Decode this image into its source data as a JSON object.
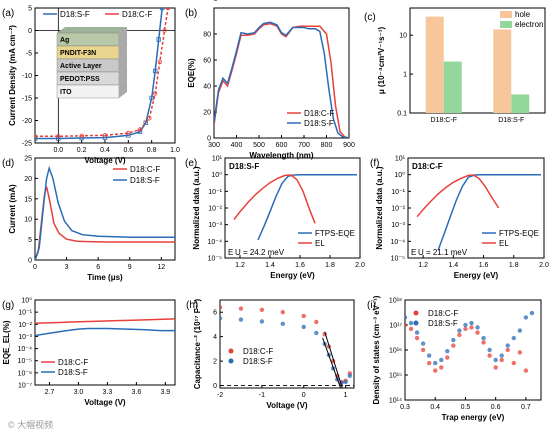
{
  "colors": {
    "red": "#e8403a",
    "blue": "#2a6cb8",
    "hole": "#f7c79b",
    "electron": "#94d79b"
  },
  "watermark": "© 大帽视频",
  "chart_data": [
    {
      "id": "a",
      "type": "line",
      "panel_label": "(a)",
      "xlabel": "Voltage (V)",
      "ylabel": "Current Density (mA cm⁻²)",
      "xlim": [
        -0.2,
        1.0
      ],
      "ylim": [
        -25,
        5
      ],
      "xticks": [
        "0.0",
        "0.2",
        "0.4",
        "0.6",
        "0.8",
        "1.0"
      ],
      "yticks": [
        "-25",
        "-20",
        "-15",
        "-10",
        "-5",
        "0",
        "5"
      ],
      "legend": "top",
      "inset_layers": [
        "Ag",
        "PNDIT-F3N",
        "Active Layer",
        "PEDOT:PSS",
        "ITO"
      ],
      "series": [
        {
          "name": "D18:S-F",
          "color": "blue",
          "marker": "square",
          "dash": false,
          "x": [
            -0.2,
            0,
            0.2,
            0.4,
            0.6,
            0.7,
            0.75,
            0.8,
            0.83,
            0.86,
            0.89
          ],
          "y": [
            -24,
            -24,
            -23.9,
            -23.8,
            -23.3,
            -22.5,
            -20.5,
            -15,
            -9,
            -2,
            5
          ]
        },
        {
          "name": "D18:C-F",
          "color": "red",
          "marker": "circle",
          "dash": true,
          "x": [
            -0.2,
            0,
            0.2,
            0.4,
            0.6,
            0.7,
            0.78,
            0.83,
            0.87,
            0.91,
            0.94
          ],
          "y": [
            -23.5,
            -23.5,
            -23.4,
            -23.3,
            -22.8,
            -22,
            -19.5,
            -14,
            -7,
            0,
            5
          ]
        }
      ]
    },
    {
      "id": "b",
      "type": "line",
      "panel_label": "(b)",
      "xlabel": "Wavelength (nm)",
      "ylabel": "EQE(%)",
      "xlim": [
        300,
        900
      ],
      "ylim": [
        0,
        100
      ],
      "xticks": [
        "300",
        "400",
        "500",
        "600",
        "700",
        "800",
        "900"
      ],
      "yticks": [
        "0",
        "20",
        "40",
        "60",
        "80",
        "100"
      ],
      "legend": "bottom-right",
      "series": [
        {
          "name": "D18:C-F",
          "color": "red",
          "x": [
            300,
            320,
            340,
            360,
            380,
            400,
            420,
            450,
            480,
            500,
            520,
            550,
            580,
            600,
            620,
            650,
            680,
            700,
            720,
            750,
            770,
            800,
            820,
            840,
            860,
            880,
            900
          ],
          "y": [
            10,
            35,
            44,
            40,
            52,
            65,
            79,
            79,
            80,
            84,
            87,
            88,
            86,
            80,
            78,
            85,
            86,
            86,
            86,
            86,
            86,
            80,
            58,
            25,
            5,
            1,
            0
          ]
        },
        {
          "name": "D18:S-F",
          "color": "blue",
          "x": [
            300,
            320,
            340,
            360,
            380,
            400,
            420,
            450,
            480,
            500,
            520,
            550,
            580,
            600,
            620,
            650,
            680,
            700,
            720,
            750,
            770,
            790,
            810,
            830,
            850,
            870,
            900
          ],
          "y": [
            12,
            37,
            46,
            42,
            54,
            67,
            81,
            80,
            81,
            85,
            88,
            89,
            87,
            81,
            79,
            85,
            85,
            85,
            84,
            84,
            82,
            65,
            38,
            15,
            4,
            1,
            0
          ]
        }
      ]
    },
    {
      "id": "c",
      "type": "bar",
      "panel_label": "(c)",
      "ylabel": "μ (10⁻⁴cm²V⁻¹s⁻¹)",
      "yscale": "log",
      "ylim": [
        0.1,
        50
      ],
      "yticks": [
        "0.1",
        "1",
        "10"
      ],
      "categories": [
        "D18:C-F",
        "D18:S-F"
      ],
      "legend": "top-right",
      "series": [
        {
          "name": "hole",
          "color": "hole",
          "values": [
            30,
            14
          ]
        },
        {
          "name": "electron",
          "color": "electron",
          "values": [
            2.1,
            0.3
          ]
        }
      ]
    },
    {
      "id": "d",
      "type": "line",
      "panel_label": "(d)",
      "xlabel": "Time (μs)",
      "ylabel": "Current (mA)",
      "xlim": [
        0,
        13.3
      ],
      "ylim": [
        0,
        25
      ],
      "xticks": [
        "0",
        "3",
        "6",
        "9",
        "12"
      ],
      "yticks": [
        "0",
        "5",
        "10",
        "15",
        "20",
        "25"
      ],
      "legend": "top-right",
      "series": [
        {
          "name": "D18:C-F",
          "color": "red",
          "x": [
            0,
            0.3,
            0.6,
            0.9,
            1.1,
            1.4,
            1.8,
            2.3,
            3,
            4,
            5,
            7,
            10,
            13.3
          ],
          "y": [
            0,
            2,
            9,
            16,
            18,
            14.5,
            9,
            6.5,
            5.1,
            4.6,
            4.5,
            4.4,
            4.4,
            4.4
          ]
        },
        {
          "name": "D18:S-F",
          "color": "blue",
          "x": [
            0,
            0.4,
            0.8,
            1.1,
            1.35,
            1.7,
            2.2,
            2.8,
            3.5,
            4.5,
            6,
            9,
            13.3
          ],
          "y": [
            0,
            3,
            13,
            20,
            22.5,
            20,
            14,
            9.5,
            7.2,
            6.2,
            5.8,
            5.6,
            5.6
          ]
        }
      ]
    },
    {
      "id": "e",
      "type": "line",
      "panel_label": "(e)",
      "title": "D18:S-F",
      "xlabel": "Energy (eV)",
      "ylabel": "Normalized data (a.u.)",
      "yscale": "log",
      "xlim": [
        1.1,
        2.0
      ],
      "ylim": [
        1e-05,
        10
      ],
      "xticks": [
        "1.2",
        "1.4",
        "1.6",
        "1.8",
        "2.0"
      ],
      "yticks": [
        "10⁻⁵",
        "10⁻⁴",
        "10⁻³",
        "10⁻²",
        "10⁻¹",
        "10⁰",
        "10¹"
      ],
      "annotation": "E U = 24.2 meV",
      "legend": "bottom-right",
      "series": [
        {
          "name": "FTPS-EQE",
          "color": "blue",
          "x": [
            1.32,
            1.36,
            1.4,
            1.44,
            1.48,
            1.52,
            1.56,
            1.6,
            1.7,
            1.8,
            1.9,
            1.98
          ],
          "y": [
            0.00012,
            0.0008,
            0.006,
            0.05,
            0.3,
            0.8,
            0.95,
            1,
            1,
            1,
            1,
            1
          ]
        },
        {
          "name": "EL",
          "color": "red",
          "x": [
            1.16,
            1.2,
            1.25,
            1.3,
            1.35,
            1.4,
            1.45,
            1.5,
            1.54,
            1.58,
            1.62,
            1.66,
            1.7
          ],
          "y": [
            0.002,
            0.006,
            0.02,
            0.06,
            0.15,
            0.33,
            0.6,
            0.9,
            0.95,
            0.5,
            0.1,
            0.01,
            0.0012
          ]
        }
      ]
    },
    {
      "id": "f",
      "type": "line",
      "panel_label": "(f)",
      "title": "D18:C-F",
      "xlabel": "Energy (eV)",
      "ylabel": "Normalized data (a.u.)",
      "yscale": "log",
      "xlim": [
        1.1,
        2.0
      ],
      "ylim": [
        1e-05,
        10
      ],
      "xticks": [
        "1.2",
        "1.4",
        "1.6",
        "1.8",
        "2.0"
      ],
      "yticks": [
        "10⁻⁵",
        "10⁻⁴",
        "10⁻³",
        "10⁻²",
        "10⁻¹",
        "10⁰",
        "10¹"
      ],
      "annotation": "E U = 21.1 meV",
      "legend": "bottom-right",
      "series": [
        {
          "name": "FTPS-EQE",
          "color": "blue",
          "x": [
            1.3,
            1.34,
            1.38,
            1.42,
            1.46,
            1.5,
            1.54,
            1.58,
            1.65,
            1.8,
            1.9,
            1.98
          ],
          "y": [
            3e-05,
            0.0003,
            0.003,
            0.03,
            0.2,
            0.7,
            0.95,
            1,
            1,
            1,
            1,
            1
          ]
        },
        {
          "name": "EL",
          "color": "red",
          "x": [
            1.16,
            1.2,
            1.25,
            1.3,
            1.35,
            1.4,
            1.45,
            1.5,
            1.53,
            1.57,
            1.61,
            1.65,
            1.7
          ],
          "y": [
            0.003,
            0.008,
            0.025,
            0.07,
            0.17,
            0.35,
            0.6,
            0.9,
            0.95,
            0.6,
            0.2,
            0.05,
            0.01
          ]
        }
      ]
    },
    {
      "id": "g",
      "type": "line",
      "panel_label": "(g)",
      "xlabel": "Voltage (V)",
      "ylabel": "EQE_EL(%)",
      "yscale": "log",
      "xlim": [
        2.55,
        4.0
      ],
      "ylim": [
        1e-07,
        1
      ],
      "xticks": [
        "2.7",
        "3.0",
        "3.3",
        "3.6",
        "3.9"
      ],
      "yticks": [
        "10⁻⁷",
        "10⁻⁶",
        "10⁻⁵",
        "10⁻⁴",
        "10⁻³",
        "10⁻²",
        "10⁻¹",
        "10⁰"
      ],
      "legend": "bottom-left",
      "series": [
        {
          "name": "D18:C-F",
          "color": "red",
          "x": [
            2.55,
            2.8,
            3.0,
            3.2,
            3.4,
            3.6,
            3.8,
            4.0
          ],
          "y": [
            0.012,
            0.014,
            0.016,
            0.018,
            0.02,
            0.022,
            0.025,
            0.028
          ]
        },
        {
          "name": "D18:S-F",
          "color": "blue",
          "x": [
            2.55,
            2.7,
            2.85,
            3.0,
            3.1,
            3.3,
            3.5,
            3.7,
            3.85,
            4.0
          ],
          "y": [
            0.0012,
            0.0018,
            0.0028,
            0.004,
            0.0045,
            0.0045,
            0.004,
            0.0035,
            0.003,
            0.003
          ]
        }
      ]
    },
    {
      "id": "h",
      "type": "scatter",
      "panel_label": "(h)",
      "xlabel": "Voltage (V)",
      "ylabel": "Capacitance⁻² (10¹⁷ F⁻²)",
      "xlim": [
        -2,
        1.2
      ],
      "ylim": [
        -0.2,
        7
      ],
      "xticks": [
        "-2",
        "-1",
        "0",
        "1"
      ],
      "yticks": [
        "0",
        "2",
        "4",
        "6"
      ],
      "legend": "center-left",
      "series": [
        {
          "name": "D18:C-F",
          "color": "red",
          "x": [
            -2,
            -1.5,
            -1,
            -0.5,
            0,
            0.3,
            0.5,
            0.6,
            0.7,
            0.8,
            0.9,
            1.0,
            1.1
          ],
          "y": [
            6.4,
            6.3,
            6.2,
            6.0,
            5.7,
            5.2,
            4.2,
            3.2,
            2.0,
            0.8,
            0.3,
            0.4,
            1.0
          ]
        },
        {
          "name": "D18:S-F",
          "color": "blue",
          "x": [
            -2,
            -1.5,
            -1,
            -0.5,
            0,
            0.3,
            0.5,
            0.6,
            0.7,
            0.8,
            0.9,
            1.0,
            1.1
          ],
          "y": [
            5.5,
            5.4,
            5.25,
            5.05,
            4.8,
            4.3,
            3.4,
            2.5,
            1.4,
            0.5,
            0.2,
            0.3,
            0.8
          ]
        }
      ]
    },
    {
      "id": "i",
      "type": "scatter",
      "panel_label": "(i)",
      "xlabel": "Trap energy (eV)",
      "ylabel": "Density of states (cm⁻³ eV⁻¹)",
      "yscale": "log",
      "xlim": [
        0.3,
        0.75
      ],
      "ylim": [
        100000000000000.0,
        1e+18
      ],
      "xticks": [
        "0.3",
        "0.4",
        "0.5",
        "0.6",
        "0.7"
      ],
      "yticks": [
        "10¹⁴",
        "10¹⁵",
        "10¹⁶",
        "10¹⁷",
        "10¹⁸"
      ],
      "legend": "top-left",
      "series": [
        {
          "name": "D18:C-F",
          "color": "red",
          "x": [
            0.3,
            0.32,
            0.34,
            0.36,
            0.38,
            0.4,
            0.42,
            0.44,
            0.46,
            0.48,
            0.5,
            0.52,
            0.54,
            0.56,
            0.58,
            0.6,
            0.62,
            0.64,
            0.66,
            0.68,
            0.7
          ],
          "y": [
            1e+17,
            7e+16,
            3e+16,
            1e+16,
            3000000000000000.0,
            1500000000000000.0,
            2000000000000000.0,
            5000000000000000.0,
            1.5e+16,
            4e+16,
            7e+16,
            8e+16,
            5e+16,
            2e+16,
            6000000000000000.0,
            2000000000000000.0,
            4000000000000000.0,
            1e+16,
            3000000000000000.0,
            8000000000000000.0,
            1500000000000000.0
          ]
        },
        {
          "name": "D18:S-F",
          "color": "blue",
          "x": [
            0.3,
            0.32,
            0.34,
            0.36,
            0.38,
            0.4,
            0.42,
            0.44,
            0.46,
            0.48,
            0.5,
            0.52,
            0.54,
            0.56,
            0.58,
            0.6,
            0.62,
            0.64,
            0.66,
            0.68,
            0.7,
            0.72
          ],
          "y": [
            2e+17,
            1.2e+17,
            5e+16,
            1.8e+16,
            6000000000000000.0,
            3000000000000000.0,
            4000000000000000.0,
            9000000000000000.0,
            2.5e+16,
            6e+16,
            1e+17,
            1.2e+17,
            8e+16,
            3e+16,
            1e+16,
            4000000000000000.0,
            6000000000000000.0,
            1.5e+16,
            3e+16,
            6e+16,
            2e+17,
            3e+17
          ]
        }
      ]
    }
  ]
}
